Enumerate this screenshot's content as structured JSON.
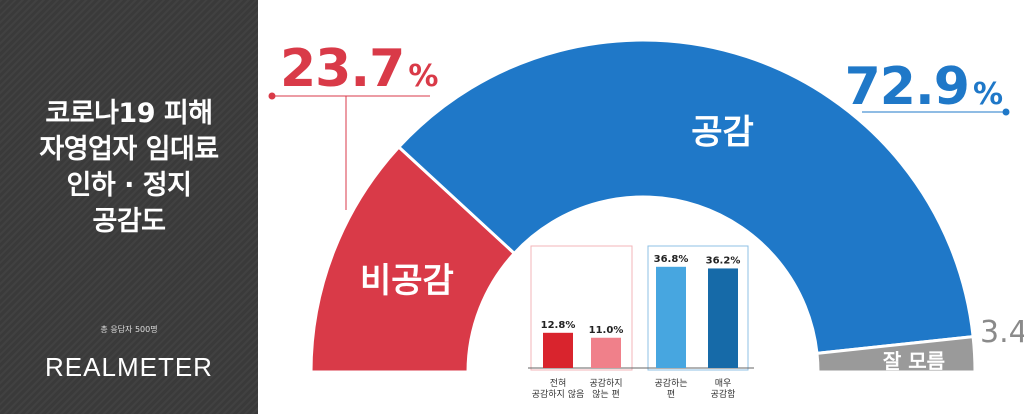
{
  "title_lines": [
    "코로나19 피해",
    "자영업자 임대료",
    "인하 · 정지",
    "공감도"
  ],
  "respondents": "총 응답자 500명",
  "brand": "REALMETER",
  "colors": {
    "agree": "#1f78c8",
    "disagree": "#d93a48",
    "unknown": "#9a9a9a",
    "never_agree": "#d9242d",
    "not_agree": "#f0808a",
    "somewhat_agree": "#47a6e0",
    "strongly_agree": "#166aa8"
  },
  "chart_data": {
    "type": "pie",
    "subtype": "semicircle-donut",
    "slices": [
      {
        "label": "비공감",
        "value": 23.7,
        "value_text": "23.7",
        "unit": "%"
      },
      {
        "label": "공감",
        "value": 72.9,
        "value_text": "72.9",
        "unit": "%"
      },
      {
        "label": "잘 모름",
        "value": 3.4,
        "value_text": "3.4",
        "unit": ""
      }
    ],
    "breakdown": {
      "type": "bar",
      "categories": [
        "전혀\n공감하지 않음",
        "공감하지\n않는 편",
        "공감하는\n편",
        "매우\n공감함"
      ],
      "values": [
        12.8,
        11.0,
        36.8,
        36.2
      ],
      "value_labels": [
        "12.8%",
        "11.0%",
        "36.8%",
        "36.2%"
      ],
      "groups": [
        "disagree",
        "disagree",
        "agree",
        "agree"
      ]
    }
  }
}
